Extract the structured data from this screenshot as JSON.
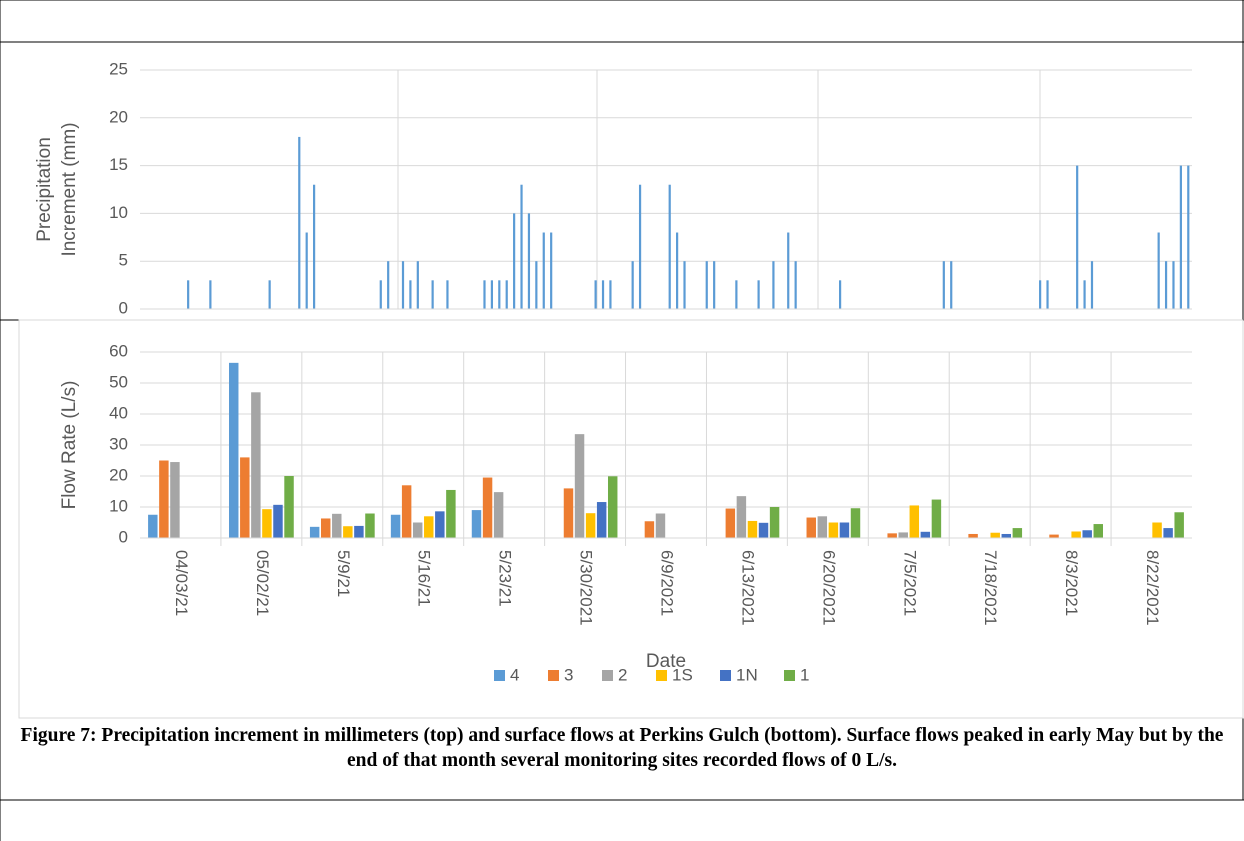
{
  "chart_data": [
    {
      "type": "bar",
      "ylabel": [
        "Precipitation",
        "Increment (mm)"
      ],
      "categories": [
        null,
        null,
        null,
        null,
        null,
        null,
        null,
        null,
        null,
        null,
        null,
        null,
        null,
        null,
        null,
        null,
        null,
        null,
        null,
        null,
        null,
        null,
        null,
        null,
        null,
        null,
        null,
        null,
        null,
        null,
        null,
        null,
        null,
        null,
        null,
        null,
        null,
        null,
        null,
        null,
        null,
        null,
        null,
        null,
        null,
        null,
        null,
        null,
        null,
        null,
        null,
        null,
        null,
        null,
        null,
        null,
        null,
        null,
        null,
        null,
        null,
        null,
        null,
        null,
        null,
        null,
        null,
        null,
        null,
        null,
        null,
        null,
        null,
        null,
        null,
        null,
        null,
        null,
        null,
        null,
        null,
        null,
        null,
        null,
        null,
        null,
        null,
        null,
        null,
        null,
        null,
        null,
        null,
        null,
        null,
        null,
        null,
        null,
        null,
        null,
        null,
        null,
        null,
        null,
        null,
        null,
        null,
        null,
        null,
        null,
        null,
        null,
        null,
        null,
        null,
        null,
        null,
        null,
        null,
        null,
        null,
        null,
        null,
        null,
        null,
        null,
        null,
        null,
        null,
        null,
        null,
        null,
        null,
        null,
        null,
        null,
        null,
        null,
        null,
        null,
        null,
        null
      ],
      "values": [
        0,
        0,
        0,
        0,
        0,
        0,
        3,
        0,
        0,
        3,
        0,
        0,
        0,
        0,
        0,
        0,
        0,
        3,
        0,
        0,
        0,
        18,
        8,
        13,
        0,
        0,
        0,
        0,
        0,
        0,
        0,
        0,
        3,
        5,
        0,
        5,
        3,
        5,
        0,
        3,
        0,
        3,
        0,
        0,
        0,
        0,
        3,
        3,
        3,
        3,
        10,
        13,
        10,
        5,
        8,
        8,
        0,
        0,
        0,
        0,
        0,
        3,
        3,
        3,
        0,
        0,
        5,
        13,
        0,
        0,
        0,
        13,
        8,
        5,
        0,
        0,
        5,
        5,
        0,
        0,
        3,
        0,
        0,
        3,
        0,
        5,
        0,
        8,
        5,
        0,
        0,
        0,
        0,
        0,
        3,
        0,
        0,
        0,
        0,
        0,
        0,
        0,
        0,
        0,
        0,
        0,
        0,
        0,
        5,
        5,
        0,
        0,
        0,
        0,
        0,
        0,
        0,
        0,
        0,
        0,
        0,
        3,
        3,
        0,
        0,
        0,
        15,
        3,
        5,
        0,
        0,
        0,
        0,
        0,
        0,
        0,
        0,
        8,
        5,
        5,
        15,
        15
      ],
      "color": "#5b9bd5",
      "ylim": [
        0,
        25
      ],
      "yticks": [
        0,
        5,
        10,
        15,
        20,
        25
      ],
      "grid": true
    },
    {
      "type": "bar",
      "ylabel": [
        "Flow Rate (L/s)"
      ],
      "xlabel": "Date",
      "categories": [
        "04/03/21",
        "05/02/21",
        "5/9/21",
        "5/16/21",
        "5/23/21",
        "5/30/2021",
        "6/9/2021",
        "6/13/2021",
        "6/20/2021",
        "7/5/2021",
        "7/18/2021",
        "8/3/2021",
        "8/22/2021"
      ],
      "series": [
        {
          "name": "4",
          "color": "#5b9bd5",
          "values": [
            7.5,
            56.5,
            3.6,
            7.5,
            9,
            0,
            0,
            0,
            0,
            0,
            0,
            0,
            0
          ]
        },
        {
          "name": "3",
          "color": "#ed7d31",
          "values": [
            25,
            26,
            6.3,
            17,
            19.5,
            16,
            5.4,
            9.5,
            6.6,
            1.5,
            1.3,
            1.1,
            0
          ]
        },
        {
          "name": "2",
          "color": "#a5a5a5",
          "values": [
            24.5,
            47,
            7.8,
            5,
            14.8,
            33.5,
            7.9,
            13.5,
            7,
            1.8,
            0,
            0,
            0
          ]
        },
        {
          "name": "1S",
          "color": "#ffc000",
          "values": [
            0,
            9.3,
            3.8,
            7,
            0,
            8,
            0,
            5.5,
            5,
            10.5,
            1.7,
            2.1,
            5
          ]
        },
        {
          "name": "1N",
          "color": "#4472c4",
          "values": [
            0,
            10.7,
            3.9,
            8.6,
            0,
            11.6,
            0,
            4.9,
            5,
            2,
            1.3,
            2.5,
            3.2
          ]
        },
        {
          "name": "1",
          "color": "#70ad47",
          "values": [
            0,
            20,
            7.9,
            15.5,
            0,
            19.9,
            0,
            10,
            9.6,
            12.4,
            3.2,
            4.5,
            8.3
          ]
        }
      ],
      "ylim": [
        0,
        60
      ],
      "yticks": [
        0,
        10,
        20,
        30,
        40,
        50,
        60
      ],
      "grid": true,
      "legend": "bottom"
    }
  ],
  "caption": "Figure 7: Precipitation increment in millimeters (top) and surface flows at Perkins Gulch (bottom). Surface flows peaked in early May but by the end of that month several monitoring sites recorded flows of 0 L/s."
}
